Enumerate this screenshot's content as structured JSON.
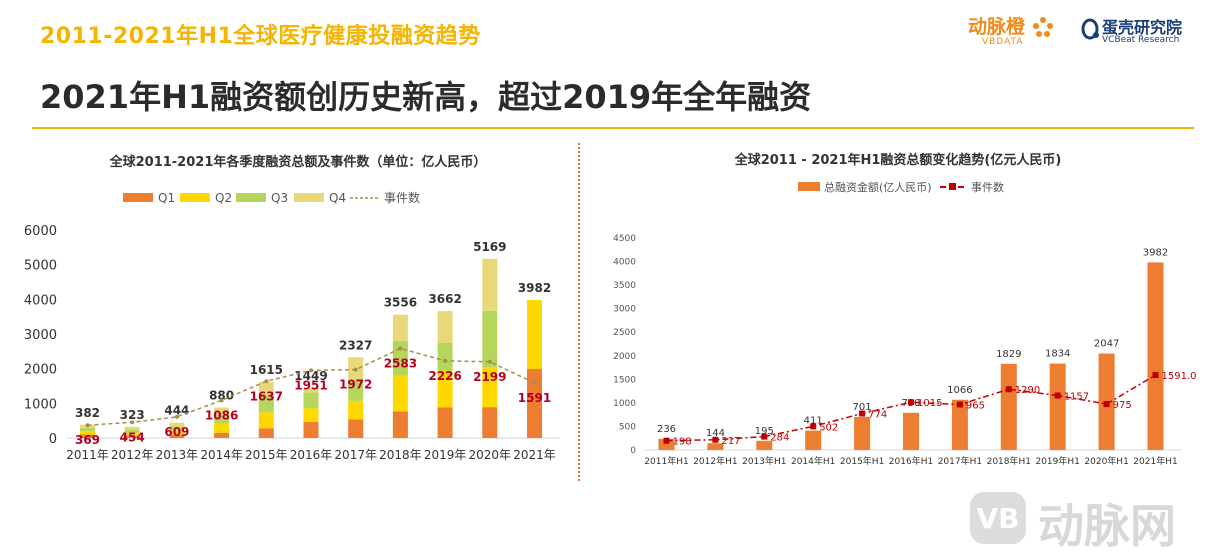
{
  "header": {
    "top_title": "2011-2021年H1全球医疗健康投融资趋势",
    "headline": "2021年H1融资额创历史新高，超过2019年全年融资"
  },
  "branding": {
    "vbdata_cn": "动脉橙",
    "vbdata_en": "VBDATA",
    "vcbeat_cn": "蛋壳研究院",
    "vcbeat_en": "VCBeat Research",
    "watermark": "动脉网"
  },
  "colors": {
    "accent": "#f5b400",
    "q1": "#ed7d31",
    "q2": "#ffd800",
    "q3": "#b4d65a",
    "q4": "#e9d87a",
    "events_line": "#a88e4a",
    "events_label": "#b8001e",
    "bar_orange": "#ed7d31",
    "events_red": "#c00000"
  },
  "chart_data": [
    {
      "type": "bar",
      "stacked": true,
      "title": "全球2011-2021年各季度融资总额及事件数（单位：亿人民币）",
      "categories": [
        "2011年",
        "2012年",
        "2013年",
        "2014年",
        "2015年",
        "2016年",
        "2017年",
        "2018年",
        "2019年",
        "2020年",
        "2021年"
      ],
      "series": [
        {
          "name": "Q1",
          "values": [
            100,
            70,
            90,
            150,
            280,
            460,
            540,
            770,
            880,
            890,
            1990
          ]
        },
        {
          "name": "Q2",
          "values": [
            100,
            80,
            120,
            260,
            460,
            400,
            530,
            1030,
            1070,
            1160,
            1992
          ]
        },
        {
          "name": "Q3",
          "values": [
            90,
            80,
            120,
            240,
            500,
            450,
            610,
            1000,
            800,
            1620,
            0
          ]
        },
        {
          "name": "Q4",
          "values": [
            92,
            93,
            114,
            230,
            375,
            139,
            647,
            756,
            912,
            1499,
            0
          ]
        }
      ],
      "totals": [
        382,
        323,
        444,
        880,
        1615,
        1449,
        2327,
        3556,
        3662,
        5169,
        3982
      ],
      "events": {
        "name": "事件数",
        "values": [
          369,
          454,
          609,
          1086,
          1637,
          1951,
          1972,
          2583,
          2226,
          2199,
          1591
        ]
      },
      "yticks": [
        0,
        1000,
        2000,
        3000,
        4000,
        5000,
        6000
      ],
      "ylim": [
        0,
        6000
      ],
      "legend_position": "top",
      "grid": false
    },
    {
      "type": "bar",
      "title": "全球2011 - 2021年H1融资总额变化趋势(亿元人民币)",
      "categories": [
        "2011年H1",
        "2012年H1",
        "2013年H1",
        "2014年H1",
        "2015年H1",
        "2016年H1",
        "2017年H1",
        "2018年H1",
        "2019年H1",
        "2020年H1",
        "2021年H1"
      ],
      "series": [
        {
          "name": "总融资金额(亿人民币)",
          "values": [
            236,
            144,
            195,
            411,
            701,
            790,
            1066,
            1829,
            1834,
            2047,
            3982
          ]
        }
      ],
      "events": {
        "name": "事件数",
        "values": [
          198,
          217,
          284,
          502,
          774,
          1015,
          965,
          1290,
          1157,
          975,
          1591
        ]
      },
      "event_labels": [
        "198",
        "217",
        "284",
        "502",
        "774",
        "1015",
        "965",
        "1290",
        "1157",
        "975",
        "1591.00"
      ],
      "yticks": [
        0,
        500,
        1000,
        1500,
        2000,
        2500,
        3000,
        3500,
        4000,
        4500
      ],
      "ylim": [
        0,
        4500
      ],
      "legend_position": "top",
      "grid": false
    }
  ]
}
